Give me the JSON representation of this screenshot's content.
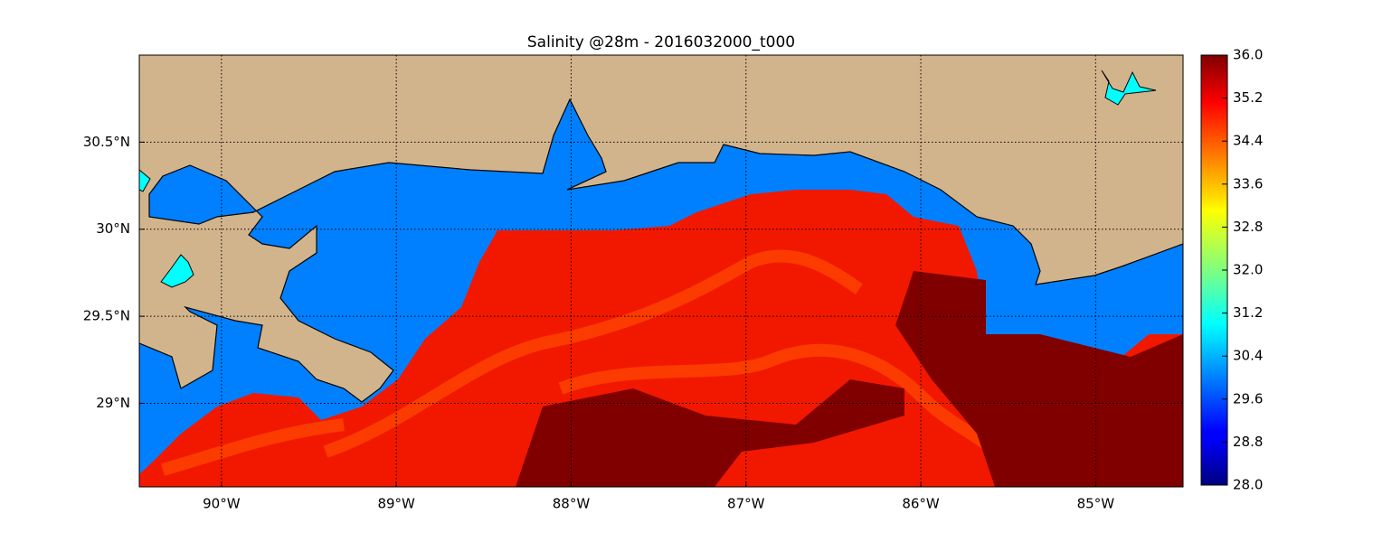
{
  "title": "Salinity @28m - 2016032000_t000",
  "map": {
    "lon_lim": [
      -90.47,
      -84.5
    ],
    "lat_lim": [
      28.52,
      31.0
    ],
    "lon_ticks": [
      {
        "value": -90,
        "label": "90°W"
      },
      {
        "value": -89,
        "label": "89°W"
      },
      {
        "value": -88,
        "label": "88°W"
      },
      {
        "value": -87,
        "label": "87°W"
      },
      {
        "value": -86,
        "label": "86°W"
      },
      {
        "value": -85,
        "label": "85°W"
      }
    ],
    "lat_ticks": [
      {
        "value": 29,
        "label": "29°N"
      },
      {
        "value": 29.5,
        "label": "29.5°N"
      },
      {
        "value": 30,
        "label": "30°N"
      },
      {
        "value": 30.5,
        "label": "30.5°N"
      }
    ],
    "grid": true
  },
  "colorbar": {
    "lim": [
      28,
      36
    ],
    "colormap": "jet",
    "ticks": [
      {
        "value": 28,
        "label": "28.0"
      },
      {
        "value": 28.8,
        "label": "28.8"
      },
      {
        "value": 29.6,
        "label": "29.6"
      },
      {
        "value": 30.4,
        "label": "30.4"
      },
      {
        "value": 31.2,
        "label": "31.2"
      },
      {
        "value": 32,
        "label": "32.0"
      },
      {
        "value": 32.8,
        "label": "32.8"
      },
      {
        "value": 33.6,
        "label": "33.6"
      },
      {
        "value": 34.4,
        "label": "34.4"
      },
      {
        "value": 35.2,
        "label": "35.2"
      },
      {
        "value": 36,
        "label": "36.0"
      }
    ]
  }
}
